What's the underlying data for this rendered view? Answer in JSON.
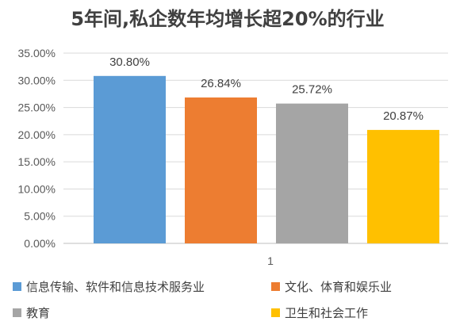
{
  "chart_data": {
    "type": "bar",
    "title": "5年间,私企数年均增长超20%的行业",
    "categories": [
      "1"
    ],
    "series": [
      {
        "name": "信息传输、软件和信息技术服务业",
        "values": [
          30.8
        ],
        "label": "30.80%",
        "color": "#5B9BD5"
      },
      {
        "name": "文化、体育和娱乐业",
        "values": [
          26.84
        ],
        "label": "26.84%",
        "color": "#ED7D31"
      },
      {
        "name": "教育",
        "values": [
          25.72
        ],
        "label": "25.72%",
        "color": "#A5A5A5"
      },
      {
        "name": "卫生和社会工作",
        "values": [
          20.87
        ],
        "label": "20.87%",
        "color": "#FFC000"
      }
    ],
    "ylim": [
      0,
      35
    ],
    "yticks": [
      "0.00%",
      "5.00%",
      "10.00%",
      "15.00%",
      "20.00%",
      "25.00%",
      "30.00%",
      "35.00%"
    ],
    "gridlines": true,
    "legend_position": "bottom"
  }
}
